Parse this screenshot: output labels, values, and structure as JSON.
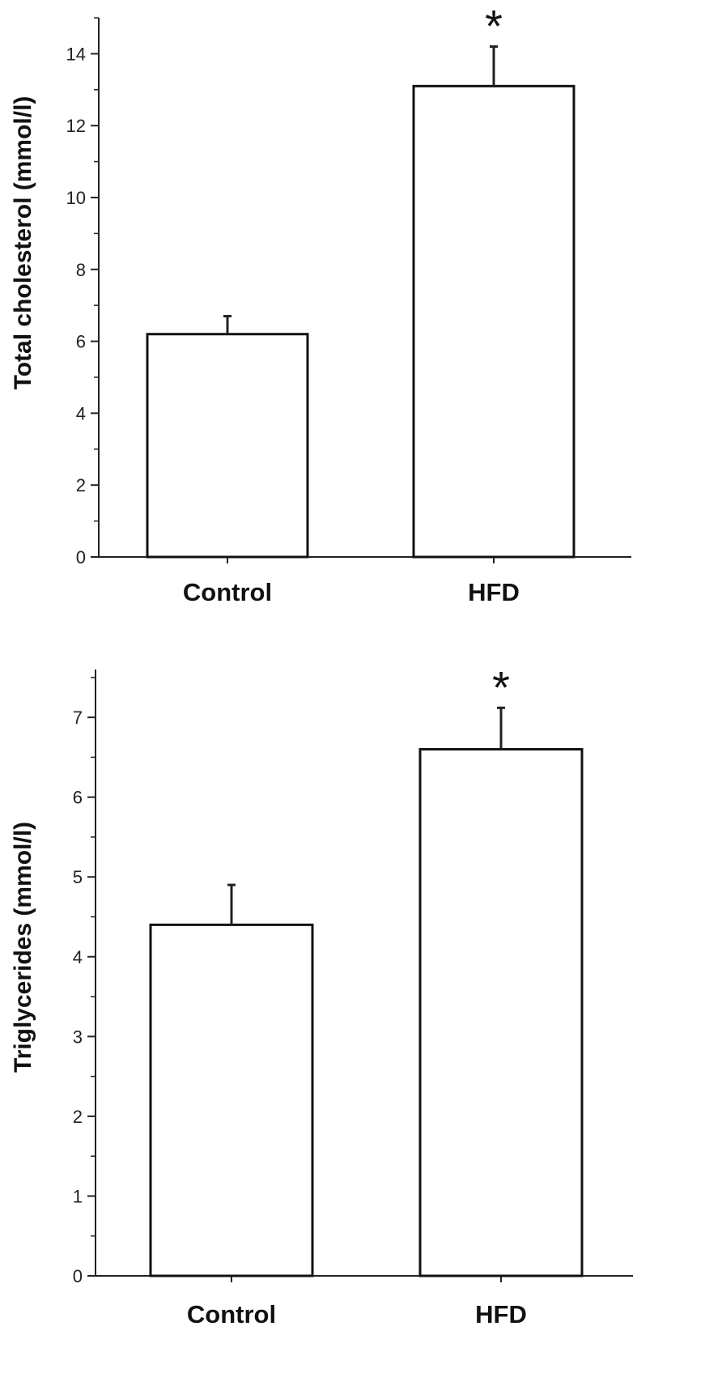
{
  "chart_data": [
    {
      "type": "bar",
      "categories": [
        "Control",
        "HFD"
      ],
      "values": [
        6.2,
        13.1
      ],
      "error": [
        0.5,
        1.1
      ],
      "annotations": [
        "",
        "*"
      ],
      "ylabel": "Total cholesterol (mmol/l)",
      "xlabel": "",
      "ylim": [
        0,
        15
      ],
      "yticks": [
        0,
        2,
        4,
        6,
        8,
        10,
        12,
        14
      ],
      "grid": false,
      "bar_fill": "#ffffff",
      "bar_stroke": "#111111"
    },
    {
      "type": "bar",
      "categories": [
        "Control",
        "HFD"
      ],
      "values": [
        4.4,
        6.6
      ],
      "error": [
        0.5,
        0.52
      ],
      "annotations": [
        "",
        "*"
      ],
      "ylabel": "Triglycerides (mmol/l)",
      "xlabel": "",
      "ylim": [
        0,
        7.6
      ],
      "yticks": [
        0,
        1,
        2,
        3,
        4,
        5,
        6,
        7
      ],
      "grid": false,
      "bar_fill": "#ffffff",
      "bar_stroke": "#111111"
    }
  ]
}
